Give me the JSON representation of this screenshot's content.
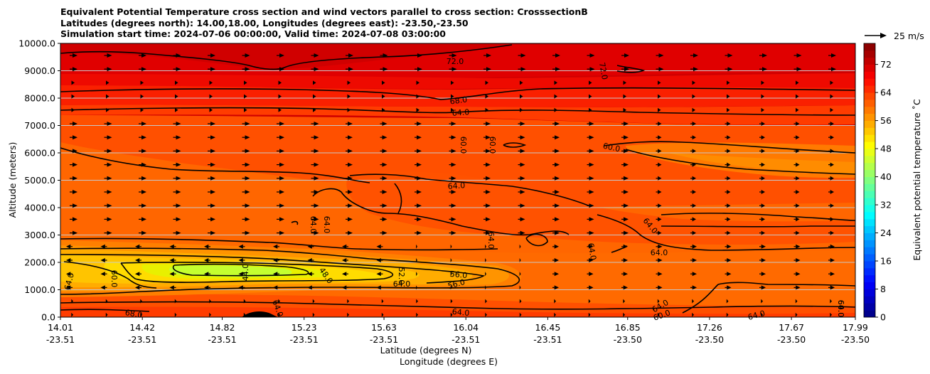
{
  "header": {
    "title_lines": [
      "Equivalent Potential Temperature cross section and wind vectors parallel to cross section: CrosssectionB",
      "Latitudes (degrees north): 14.00,18.00, Longitudes (degrees east): -23.50,-23.50",
      "Simulation start time: 2024-07-06 00:00:00, Valid time: 2024-07-08 03:00:00"
    ]
  },
  "chart_data": {
    "type": "heatmap",
    "title": "Equivalent Potential Temperature cross section and wind vectors parallel to cross section: CrosssectionB",
    "ylabel": "Altitude (meters)",
    "xlabel_lines": [
      "Latitude (degrees N)",
      "Longitude (degrees E)"
    ],
    "ylim": [
      0,
      10000
    ],
    "yticks": [
      "0.0",
      "1000.0",
      "2000.0",
      "3000.0",
      "4000.0",
      "5000.0",
      "6000.0",
      "7000.0",
      "8000.0",
      "9000.0",
      "10000.0"
    ],
    "xticks": [
      {
        "lat": "14.01",
        "lon": "-23.51"
      },
      {
        "lat": "14.42",
        "lon": "-23.51"
      },
      {
        "lat": "14.82",
        "lon": "-23.51"
      },
      {
        "lat": "15.23",
        "lon": "-23.51"
      },
      {
        "lat": "15.63",
        "lon": "-23.51"
      },
      {
        "lat": "16.04",
        "lon": "-23.51"
      },
      {
        "lat": "16.45",
        "lon": "-23.51"
      },
      {
        "lat": "16.85",
        "lon": "-23.50"
      },
      {
        "lat": "17.26",
        "lon": "-23.50"
      },
      {
        "lat": "17.67",
        "lon": "-23.50"
      },
      {
        "lat": "17.99",
        "lon": "-23.50"
      }
    ],
    "xlim": [
      14.01,
      17.99
    ],
    "colorbar": {
      "label": "Equivalent potential temperature ˚C",
      "ticks": [
        "0",
        "8",
        "16",
        "24",
        "32",
        "40",
        "48",
        "56",
        "64",
        "72"
      ],
      "min": 0,
      "max": 78,
      "step": 2,
      "colormap": "jet"
    },
    "quiver_key": "25 m/s",
    "contour_labels": [
      "72.0",
      "72.0",
      "68.0",
      "64.0",
      "60.0",
      "60.0",
      "60.0",
      "64.0",
      "64.0",
      "64.0",
      "64.0",
      "64.0",
      "64.0",
      "64.0",
      "64.0",
      "60.0",
      "64.0",
      "64.0",
      "48.0",
      "44.0",
      "52.0",
      "56.0",
      "56.0",
      "64.0",
      "68.0",
      "64.0",
      "60.0",
      "64.0",
      "64.0",
      "60.0"
    ]
  }
}
